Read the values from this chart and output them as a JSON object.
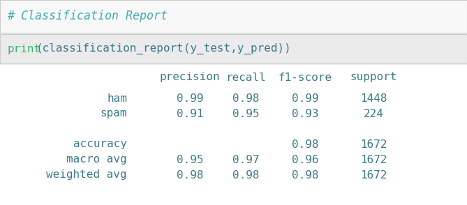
{
  "title_comment": "# Classification Report",
  "code_print": "print",
  "code_rest": "(classification_report(y_test,y_pred))",
  "header": [
    "precision",
    "recall",
    "f1-score",
    "support"
  ],
  "rows": [
    {
      "label": "ham",
      "precision": "0.99",
      "recall": "0.98",
      "f1": "0.99",
      "support": "1448"
    },
    {
      "label": "spam",
      "precision": "0.91",
      "recall": "0.95",
      "f1": "0.93",
      "support": "224"
    },
    {
      "label": null,
      "precision": null,
      "recall": null,
      "f1": null,
      "support": null
    },
    {
      "label": "accuracy",
      "precision": null,
      "recall": null,
      "f1": "0.98",
      "support": "1672"
    },
    {
      "label": "macro avg",
      "precision": "0.95",
      "recall": "0.97",
      "f1": "0.96",
      "support": "1672"
    },
    {
      "label": "weighted avg",
      "precision": "0.98",
      "recall": "0.98",
      "f1": "0.98",
      "support": "1672"
    }
  ],
  "bg_outer": "#f0f0f0",
  "bg_comment_cell": "#f8f8f8",
  "bg_code_cell": "#ebebeb",
  "bg_output": "#ffffff",
  "border_color": "#cccccc",
  "teal_color": "#3daeb8",
  "text_color": "#3d7a8a",
  "green_color": "#3ab570",
  "comment_color": "#3daeb8",
  "font_size": 11.5,
  "title_font_size": 12
}
